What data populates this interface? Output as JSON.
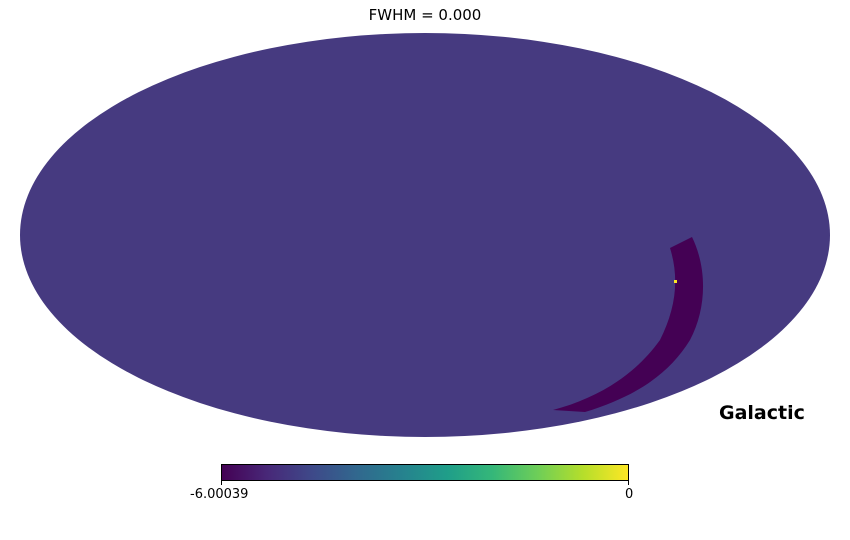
{
  "title": "FWHM = 0.000",
  "projection": "mollweide",
  "coordinate_system": "Galactic",
  "colors": {
    "background_value": "#463a80",
    "mask_band": "#440154",
    "hot_pixel": "#fde725",
    "colormap": "viridis",
    "colormap_stops": [
      "#440154",
      "#482878",
      "#3e4989",
      "#31688e",
      "#26828e",
      "#1f9e89",
      "#35b779",
      "#6ece58",
      "#b5de2b",
      "#fde725"
    ]
  },
  "colorbar": {
    "min_label": "-6.00039",
    "max_label": "0",
    "min": -6.00039,
    "max": 0
  },
  "map_values": {
    "background": -5.0,
    "mask_band": -6.00039,
    "hot_pixel": 0
  }
}
